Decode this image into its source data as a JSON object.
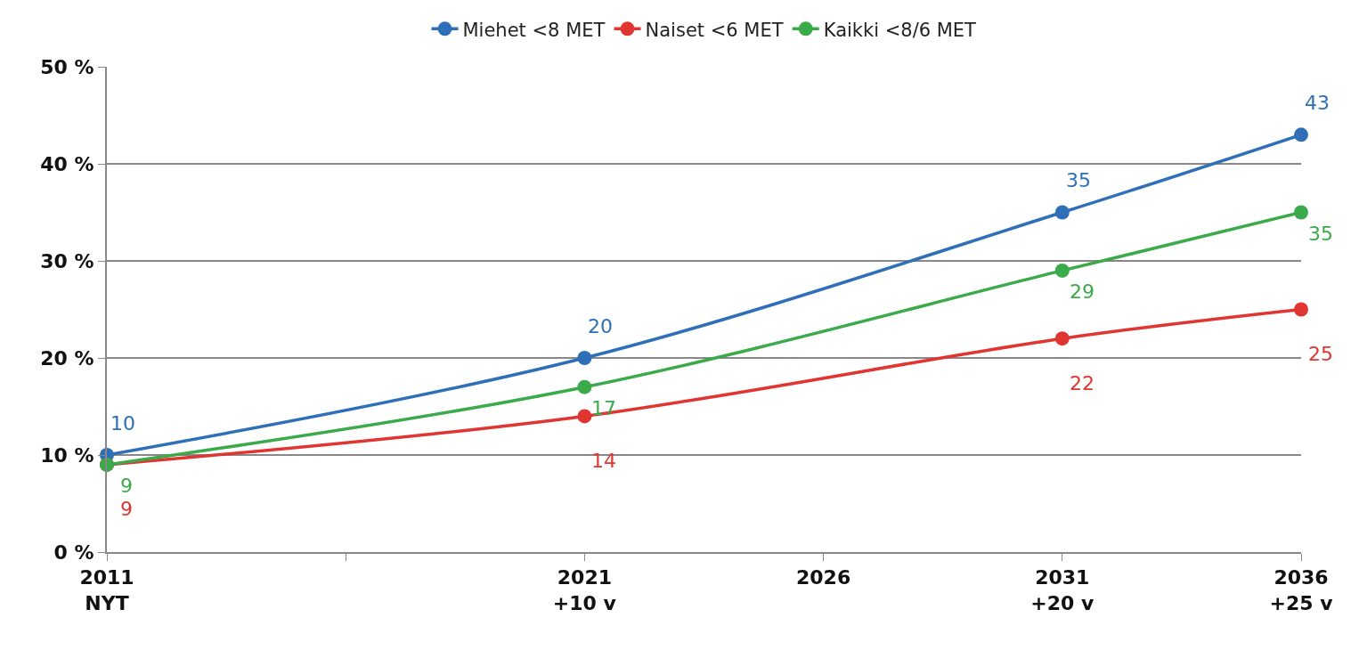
{
  "chart_data": {
    "type": "line",
    "x": [
      2011,
      2021,
      2031,
      2036
    ],
    "series": [
      {
        "name": "Miehet <8 MET",
        "color": "#2e6fb7",
        "values": [
          10,
          20,
          35,
          43
        ]
      },
      {
        "name": "Naiset <6 MET",
        "color": "#e03530",
        "values": [
          9,
          14,
          22,
          25
        ]
      },
      {
        "name": "Kaikki <8/6 MET",
        "color": "#3aaa4a",
        "values": [
          9,
          17,
          29,
          35
        ]
      }
    ],
    "xlim": [
      2011,
      2036
    ],
    "xticks": [
      {
        "value": 2011,
        "label": "2011\nNYT"
      },
      {
        "value": 2016,
        "label": null
      },
      {
        "value": 2021,
        "label": "2021\n+10 v"
      },
      {
        "value": 2026,
        "label": "2026"
      },
      {
        "value": 2031,
        "label": "2031\n+20 v"
      },
      {
        "value": 2036,
        "label": "2036\n+25 v"
      }
    ],
    "ylim": [
      0,
      50
    ],
    "yticks": [
      {
        "value": 0,
        "label": "0 %"
      },
      {
        "value": 10,
        "label": "10 %"
      },
      {
        "value": 20,
        "label": "20 %"
      },
      {
        "value": 30,
        "label": "30 %"
      },
      {
        "value": 40,
        "label": "40 %"
      },
      {
        "value": 50,
        "label": "50 %"
      }
    ],
    "grid": "y",
    "legend": "top",
    "marker": "circle",
    "line_style": "solid",
    "data_labels": true
  }
}
